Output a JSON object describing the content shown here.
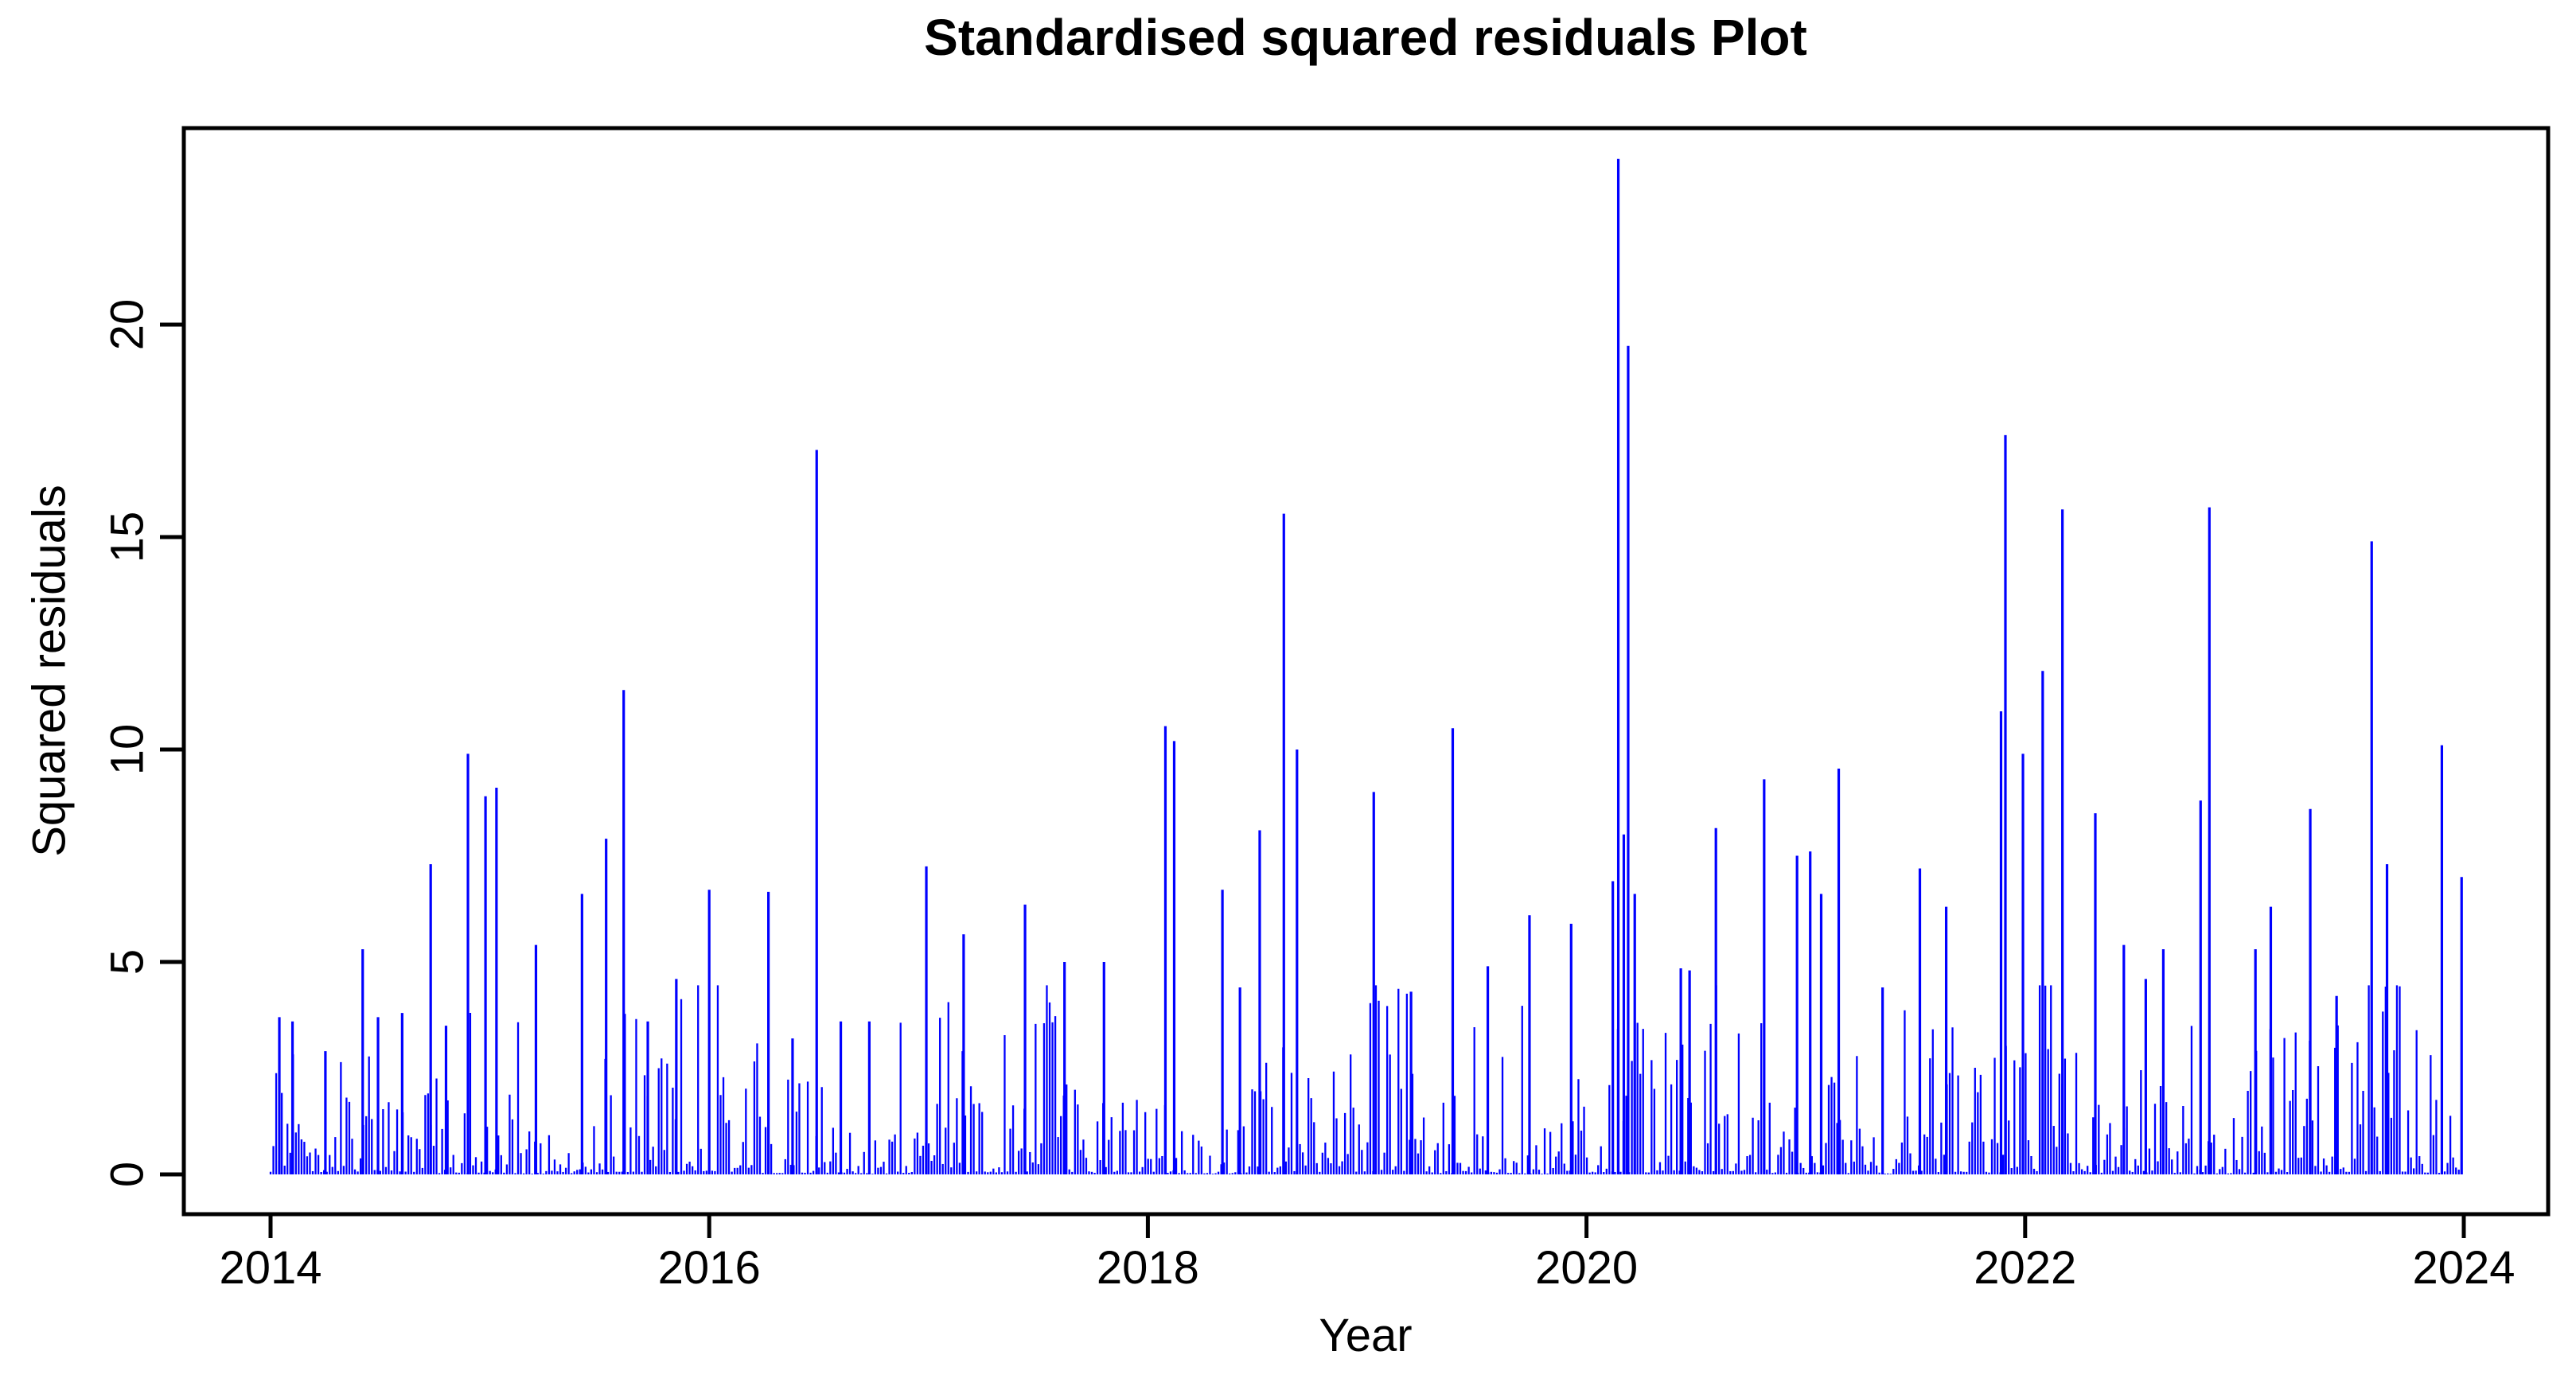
{
  "page": {
    "background_color": "#ffffff",
    "text_color": "#000000"
  },
  "chart_data": {
    "type": "bar",
    "subtype": "vertical-spike-series (R plot type='h')",
    "title": "Standardised squared residuals Plot",
    "xlabel": "Year",
    "ylabel": "Squared residuals",
    "series_name": "standardised squared residuals",
    "spike_color": "#0000FF",
    "axis_color": "#000000",
    "x_ticks": [
      2014,
      2016,
      2018,
      2020,
      2022,
      2024
    ],
    "y_ticks": [
      0,
      5,
      10,
      15,
      20
    ],
    "xlim": [
      2013.61,
      2024.39
    ],
    "ylim": [
      -0.96,
      24.86
    ],
    "x_range_data": [
      2014.0,
      2024.0
    ],
    "grid": false,
    "legend": "none",
    "max_value": 23.9,
    "peaks": [
      [
        2014.04,
        3.7
      ],
      [
        2014.1,
        3.6
      ],
      [
        2014.25,
        2.9
      ],
      [
        2014.42,
        5.3
      ],
      [
        2014.49,
        3.7
      ],
      [
        2014.6,
        3.8
      ],
      [
        2014.73,
        7.3
      ],
      [
        2014.8,
        3.5
      ],
      [
        2014.9,
        9.9
      ],
      [
        2014.98,
        8.9
      ],
      [
        2015.03,
        9.1
      ],
      [
        2015.21,
        5.4
      ],
      [
        2015.42,
        6.6
      ],
      [
        2015.53,
        7.9
      ],
      [
        2015.61,
        11.4
      ],
      [
        2015.72,
        3.6
      ],
      [
        2015.85,
        4.6
      ],
      [
        2016.0,
        6.7
      ],
      [
        2016.27,
        6.65
      ],
      [
        2016.38,
        3.2
      ],
      [
        2016.49,
        17.05
      ],
      [
        2016.6,
        3.6
      ],
      [
        2016.73,
        3.6
      ],
      [
        2016.99,
        7.25
      ],
      [
        2017.16,
        5.65
      ],
      [
        2017.44,
        6.35
      ],
      [
        2017.62,
        5.0
      ],
      [
        2017.8,
        5.0
      ],
      [
        2018.08,
        10.55
      ],
      [
        2018.12,
        10.2
      ],
      [
        2018.34,
        6.7
      ],
      [
        2018.42,
        4.4
      ],
      [
        2018.51,
        8.1
      ],
      [
        2018.62,
        15.55
      ],
      [
        2018.68,
        10.0
      ],
      [
        2019.03,
        9.0
      ],
      [
        2019.2,
        4.3
      ],
      [
        2019.39,
        10.5
      ],
      [
        2019.55,
        4.9
      ],
      [
        2019.74,
        6.1
      ],
      [
        2019.93,
        5.9
      ],
      [
        2020.12,
        6.9
      ],
      [
        2020.145,
        23.9
      ],
      [
        2020.17,
        8.0
      ],
      [
        2020.19,
        19.5
      ],
      [
        2020.22,
        6.6
      ],
      [
        2020.43,
        4.85
      ],
      [
        2020.47,
        4.8
      ],
      [
        2020.59,
        8.15
      ],
      [
        2020.81,
        9.3
      ],
      [
        2020.96,
        7.5
      ],
      [
        2021.02,
        7.6
      ],
      [
        2021.07,
        6.6
      ],
      [
        2021.15,
        9.55
      ],
      [
        2021.35,
        4.4
      ],
      [
        2021.52,
        7.2
      ],
      [
        2021.64,
        6.3
      ],
      [
        2021.89,
        10.9
      ],
      [
        2021.91,
        17.4
      ],
      [
        2021.99,
        9.9
      ],
      [
        2022.08,
        11.85
      ],
      [
        2022.17,
        15.65
      ],
      [
        2022.32,
        8.5
      ],
      [
        2022.45,
        5.4
      ],
      [
        2022.55,
        4.6
      ],
      [
        2022.63,
        5.3
      ],
      [
        2022.8,
        8.8
      ],
      [
        2022.84,
        15.7
      ],
      [
        2023.05,
        5.3
      ],
      [
        2023.12,
        6.3
      ],
      [
        2023.3,
        8.6
      ],
      [
        2023.42,
        4.2
      ],
      [
        2023.58,
        14.9
      ],
      [
        2023.65,
        7.3
      ],
      [
        2023.9,
        10.1
      ],
      [
        2023.99,
        7.0
      ]
    ],
    "background_noise": {
      "count": 780,
      "x_start": 2014.0,
      "x_end": 2023.99,
      "max": 4.45,
      "power": 3,
      "seed": 123456789,
      "description": "dense near-daily squared residuals, mostly 0-2 with frequent bursts up to ~4.4"
    }
  }
}
